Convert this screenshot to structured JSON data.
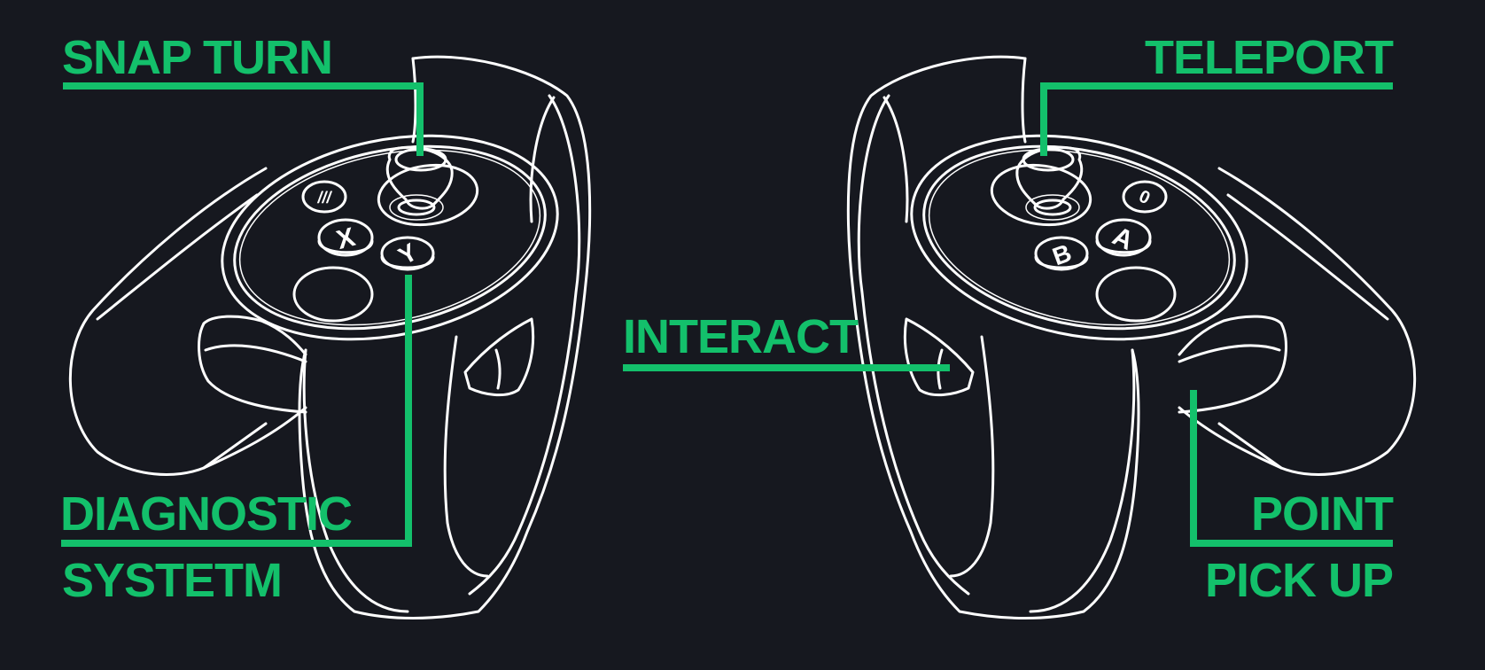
{
  "labels": {
    "snap_turn": "SNAP TURN",
    "teleport": "TELEPORT",
    "interact": "INTERACT",
    "diagnostic_line1": "DIAGNOSTIC",
    "diagnostic_line2": "SYSTETM",
    "point": "POINT",
    "pick_up": "PICK UP"
  },
  "buttons": {
    "left_menu": "///",
    "x": "X",
    "y": "Y",
    "oculus": "0",
    "a": "A",
    "b": "B"
  },
  "colors": {
    "background": "#16181f",
    "accent": "#13c06b",
    "outline": "#ffffff"
  }
}
